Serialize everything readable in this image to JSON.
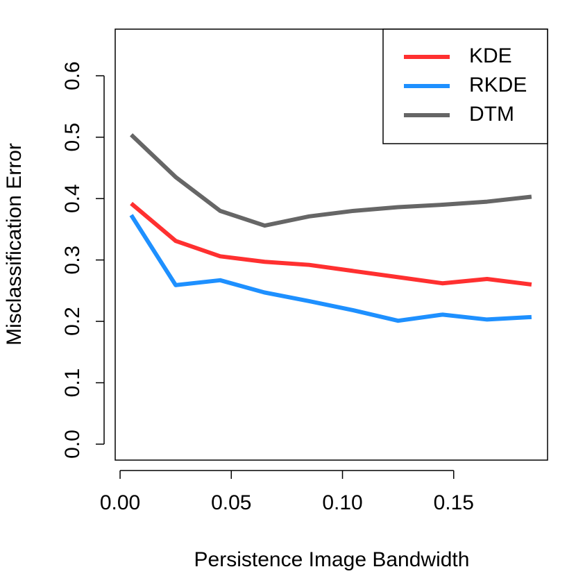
{
  "chart_data": {
    "type": "line",
    "xlabel": "Persistence Image Bandwidth",
    "ylabel": "Misclassification Error",
    "x": [
      0.005,
      0.025,
      0.045,
      0.065,
      0.085,
      0.105,
      0.125,
      0.145,
      0.165,
      0.185
    ],
    "series": [
      {
        "name": "KDE",
        "color": "#ff3030",
        "values": [
          0.392,
          0.331,
          0.306,
          0.297,
          0.292,
          0.282,
          0.272,
          0.262,
          0.269,
          0.26
        ]
      },
      {
        "name": "RKDE",
        "color": "#1e90ff",
        "values": [
          0.373,
          0.259,
          0.267,
          0.247,
          0.233,
          0.218,
          0.201,
          0.211,
          0.203,
          0.207
        ]
      },
      {
        "name": "DTM",
        "color": "#666666",
        "values": [
          0.504,
          0.435,
          0.38,
          0.356,
          0.371,
          0.38,
          0.386,
          0.39,
          0.395,
          0.403
        ]
      }
    ],
    "xlim": [
      -0.0022,
      0.1922
    ],
    "ylim": [
      -0.026,
      0.676
    ],
    "xticks": [
      {
        "value": 0,
        "label": "0.00"
      },
      {
        "value": 0.05,
        "label": "0.05"
      },
      {
        "value": 0.1,
        "label": "0.10"
      },
      {
        "value": 0.15,
        "label": "0.15"
      }
    ],
    "yticks": [
      {
        "value": 0,
        "label": "0.0"
      },
      {
        "value": 0.1,
        "label": "0.1"
      },
      {
        "value": 0.2,
        "label": "0.2"
      },
      {
        "value": 0.3,
        "label": "0.3"
      },
      {
        "value": 0.4,
        "label": "0.4"
      },
      {
        "value": 0.5,
        "label": "0.5"
      },
      {
        "value": 0.6,
        "label": "0.6"
      }
    ],
    "legend": "top-right"
  }
}
